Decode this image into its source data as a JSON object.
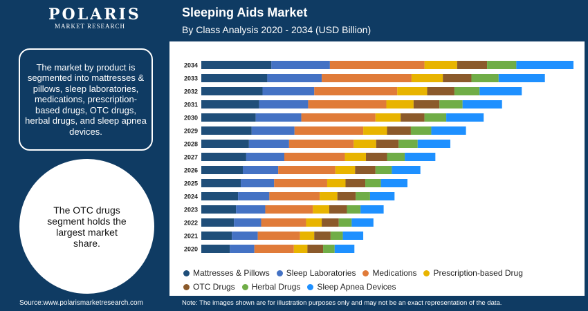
{
  "brand": {
    "name": "POLARIS",
    "tagline": "MARKET RESEARCH"
  },
  "header": {
    "title": "Sleeping Aids Market",
    "subtitle": "By Class Analysis 2020 - 2034 (USD Billion)"
  },
  "sidebar": {
    "info_text": "The market by product is segmented into mattresses & pillows, sleep laboratories, medications, prescription-based drugs, OTC drugs, herbal drugs, and sleep apnea devices.",
    "highlight_text": "The OTC drugs segment holds the largest market share."
  },
  "footer": {
    "source": "Source:www.polarismarketresearch.com",
    "note": "Note: The images shown are for illustration purposes only and may not be an exact representation of the data."
  },
  "chart_data": {
    "type": "bar",
    "orientation": "horizontal",
    "stacked": true,
    "title": "Sleeping Aids Market",
    "subtitle": "By Class Analysis 2020 - 2034 (USD Billion)",
    "categories": [
      "2034",
      "2033",
      "2032",
      "2031",
      "2030",
      "2029",
      "2028",
      "2027",
      "2026",
      "2025",
      "2024",
      "2023",
      "2022",
      "2021",
      "2020"
    ],
    "series": [
      {
        "name": "Mattresses & Pillows",
        "color": "#1f4e79",
        "values": [
          103,
          97,
          90,
          85,
          80,
          74,
          70,
          66,
          61,
          58,
          54,
          51,
          48,
          45,
          42
        ]
      },
      {
        "name": "Sleep Laboratories",
        "color": "#4472c4",
        "values": [
          86,
          80,
          76,
          72,
          67,
          63,
          59,
          56,
          52,
          49,
          46,
          43,
          40,
          38,
          36
        ]
      },
      {
        "name": "Medications",
        "color": "#e07b39",
        "values": [
          139,
          132,
          122,
          115,
          109,
          101,
          95,
          89,
          84,
          78,
          74,
          70,
          66,
          62,
          58
        ]
      },
      {
        "name": "Prescription-based Drug",
        "color": "#e8b400",
        "values": [
          48,
          46,
          44,
          40,
          37,
          35,
          33,
          31,
          29,
          27,
          26,
          24,
          23,
          21,
          20
        ]
      },
      {
        "name": "OTC Drugs",
        "color": "#8b5a2b",
        "values": [
          44,
          42,
          40,
          38,
          35,
          35,
          33,
          31,
          30,
          29,
          27,
          26,
          25,
          24,
          23
        ]
      },
      {
        "name": "Herbal Drugs",
        "color": "#70ad47",
        "values": [
          43,
          40,
          37,
          34,
          32,
          30,
          28,
          26,
          24,
          23,
          21,
          20,
          19,
          18,
          17
        ]
      },
      {
        "name": "Sleep Apnea Devices",
        "color": "#1e90ff",
        "values": [
          84,
          68,
          62,
          58,
          55,
          51,
          48,
          45,
          42,
          39,
          36,
          34,
          32,
          30,
          29
        ]
      }
    ],
    "legend_position": "bottom",
    "grid": false,
    "value_axis_visible": false
  }
}
